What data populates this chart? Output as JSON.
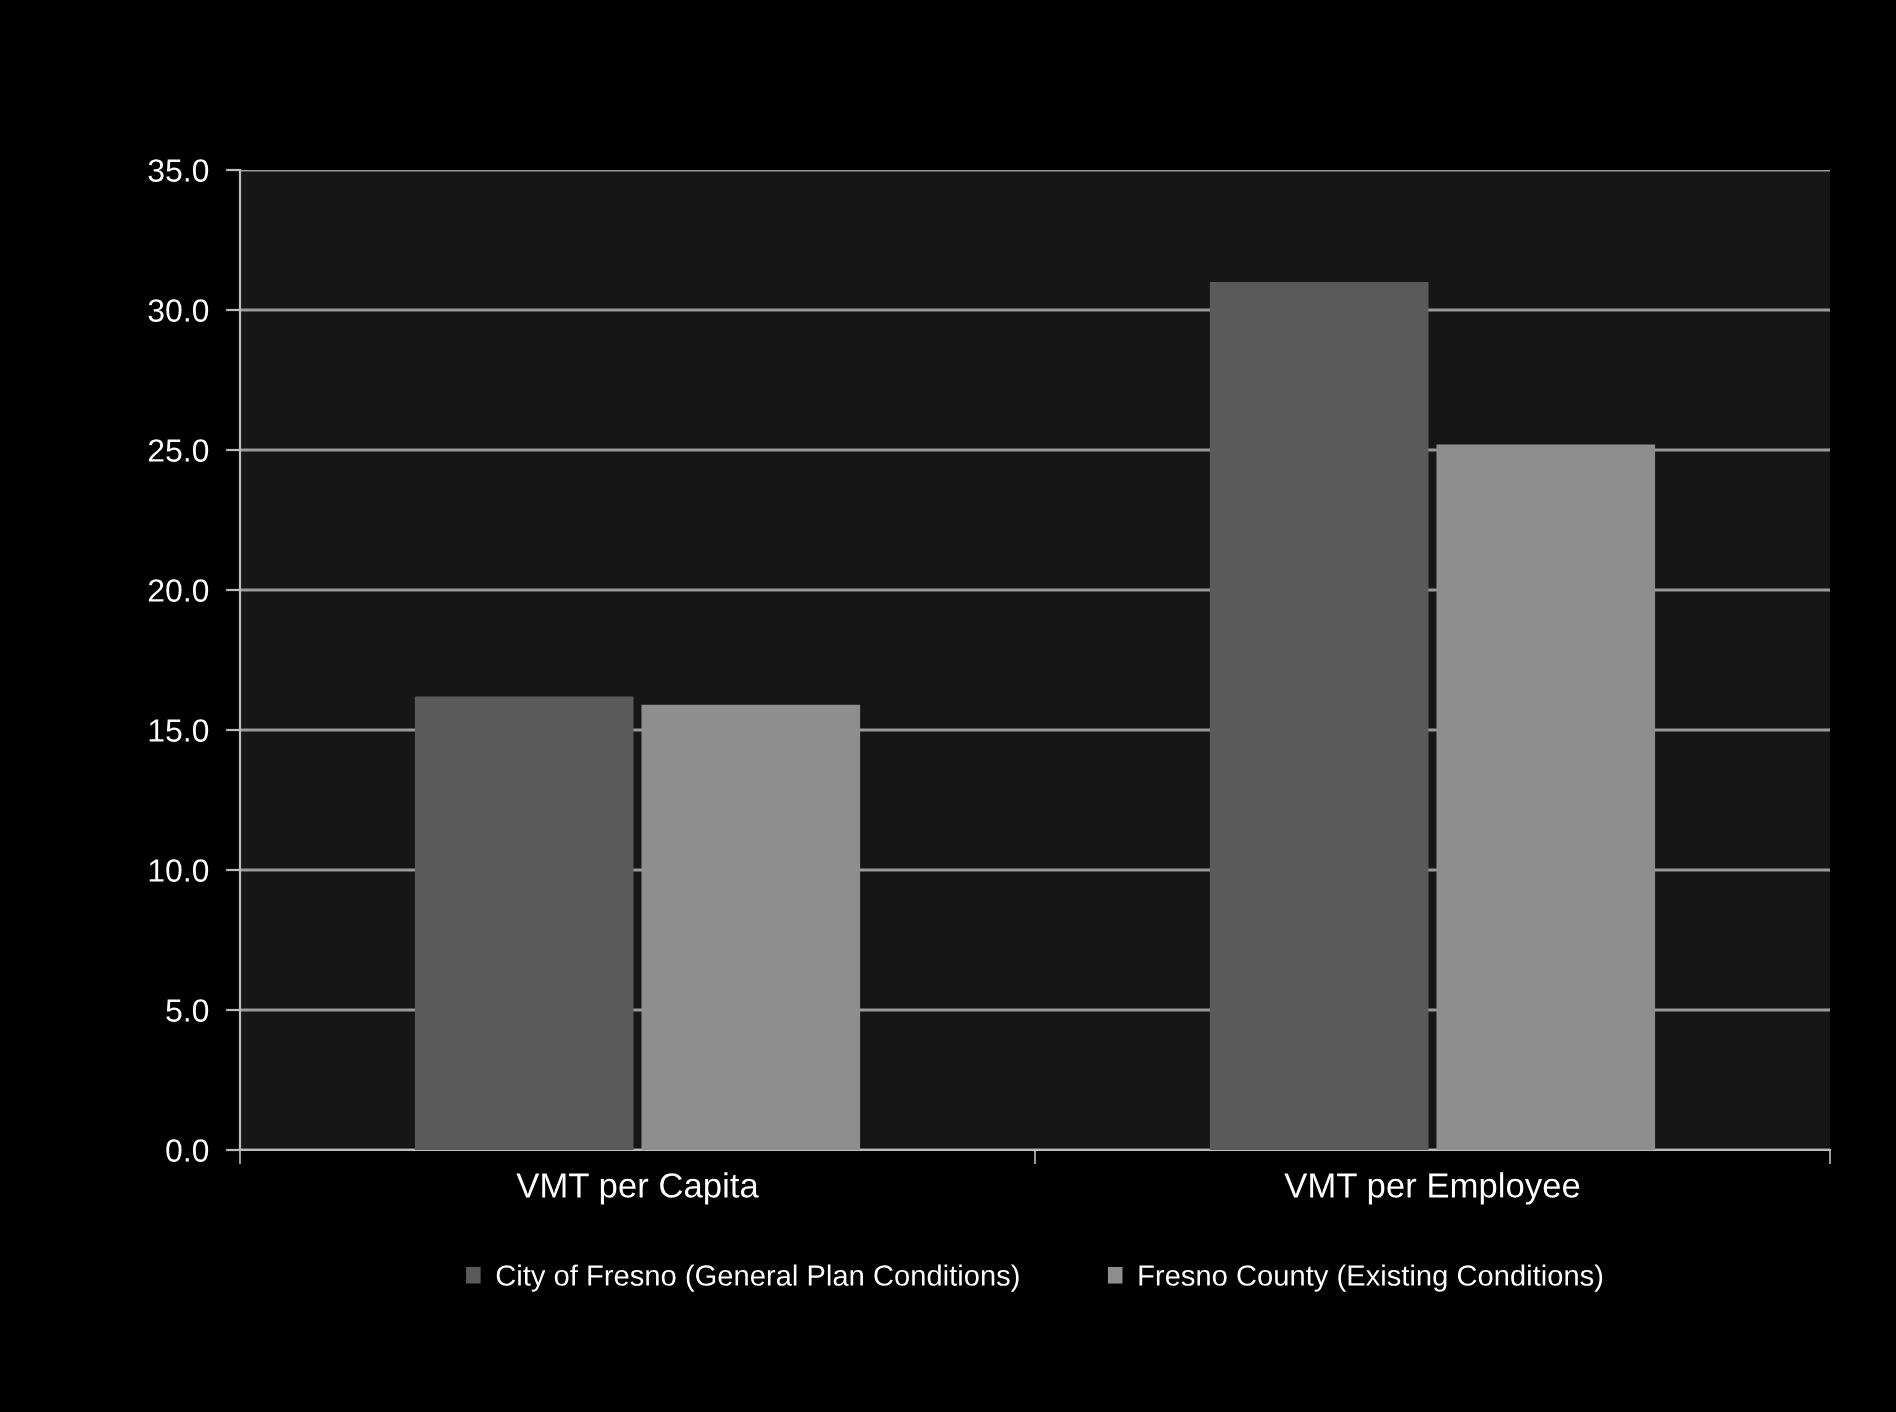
{
  "chart_data": {
    "type": "bar",
    "categories": [
      "VMT per Capita",
      "VMT per Employee"
    ],
    "series": [
      {
        "name": "City of Fresno (General Plan Conditions)",
        "color": "#5a5a5a",
        "values": [
          16.2,
          31.0
        ]
      },
      {
        "name": "Fresno County (Existing Conditions)",
        "color": "#8e8e8e",
        "values": [
          15.9,
          25.2
        ]
      }
    ],
    "ylim": [
      0,
      35
    ],
    "yticks": [
      {
        "value": 0,
        "label": "0.0"
      },
      {
        "value": 5,
        "label": "5.0"
      },
      {
        "value": 10,
        "label": "10.0"
      },
      {
        "value": 15,
        "label": "15.0"
      },
      {
        "value": 20,
        "label": "20.0"
      },
      {
        "value": 25,
        "label": "25.0"
      },
      {
        "value": 30,
        "label": "30.0"
      },
      {
        "value": 35,
        "label": "35.0"
      }
    ],
    "grid": "y",
    "legend": "bottom"
  }
}
